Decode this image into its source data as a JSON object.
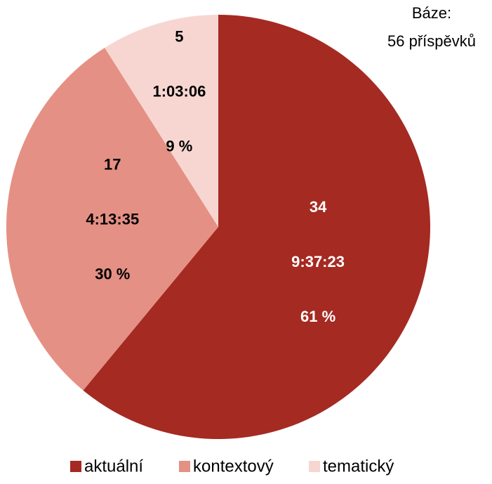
{
  "chart_data": {
    "type": "pie",
    "annotation": [
      "Báze:",
      "56 příspěvků"
    ],
    "categories": [
      "aktuální",
      "kontextový",
      "tematický"
    ],
    "values": [
      61,
      30,
      9
    ],
    "value_labels": [
      "61 %",
      "30 %",
      "9 %"
    ],
    "counts": [
      34,
      17,
      5
    ],
    "durations": [
      "9:37:23",
      "4:13:35",
      "1:03:06"
    ],
    "colors": [
      "#a52a22",
      "#e59084",
      "#f7d6d2"
    ],
    "legend": "bottom"
  }
}
